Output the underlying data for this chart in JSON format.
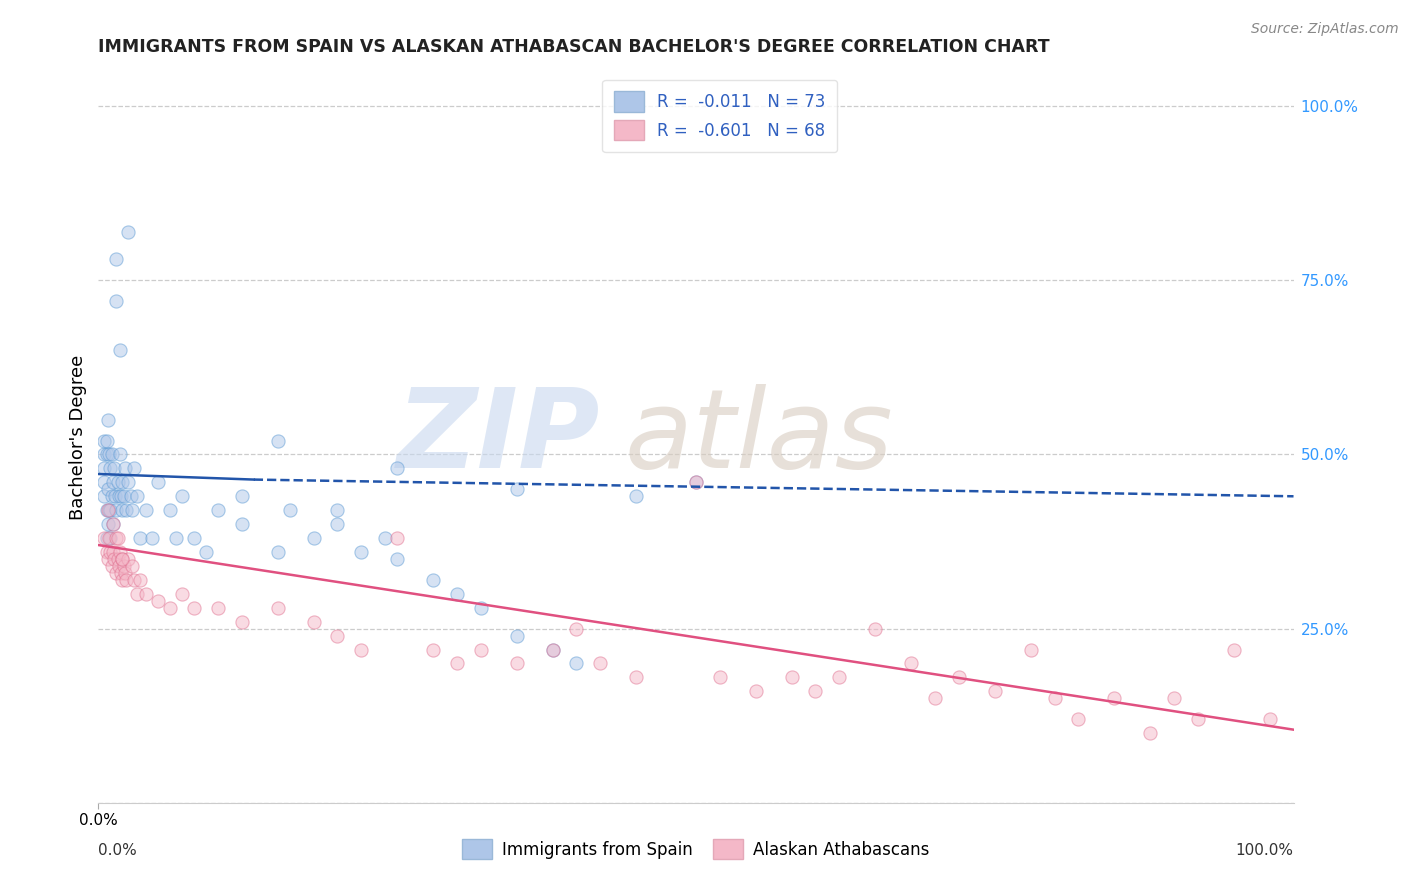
{
  "title": "IMMIGRANTS FROM SPAIN VS ALASKAN ATHABASCAN BACHELOR'S DEGREE CORRELATION CHART",
  "source": "Source: ZipAtlas.com",
  "ylabel": "Bachelor's Degree",
  "right_ytick_labels": [
    "100.0%",
    "75.0%",
    "50.0%",
    "25.0%"
  ],
  "right_ytick_vals": [
    1.0,
    0.75,
    0.5,
    0.25
  ],
  "grid_ytick_vals": [
    1.0,
    0.75,
    0.5,
    0.25,
    0.0
  ],
  "xlim": [
    0.0,
    1.0
  ],
  "ylim": [
    0.0,
    1.05
  ],
  "legend_top": [
    {
      "label": "R =  -0.011   N = 73",
      "facecolor": "#aec6e8",
      "edgecolor": "#9ab8d8"
    },
    {
      "label": "R =  -0.601   N = 68",
      "facecolor": "#f4b8c8",
      "edgecolor": "#e4a8b8"
    }
  ],
  "legend_bottom_labels": [
    "Immigrants from Spain",
    "Alaskan Athabascans"
  ],
  "legend_bottom_facecolors": [
    "#aec6e8",
    "#f4b8c8"
  ],
  "legend_bottom_edgecolors": [
    "#9ab8d8",
    "#e4a8b8"
  ],
  "legend_text_color": "#3060c0",
  "blue_scatter_x": [
    0.005,
    0.005,
    0.005,
    0.005,
    0.005,
    0.007,
    0.007,
    0.007,
    0.007,
    0.008,
    0.008,
    0.008,
    0.009,
    0.009,
    0.01,
    0.01,
    0.01,
    0.011,
    0.011,
    0.012,
    0.012,
    0.013,
    0.014,
    0.015,
    0.015,
    0.015,
    0.016,
    0.017,
    0.018,
    0.018,
    0.019,
    0.02,
    0.02,
    0.021,
    0.022,
    0.023,
    0.025,
    0.025,
    0.027,
    0.028,
    0.03,
    0.032,
    0.035,
    0.04,
    0.045,
    0.05,
    0.06,
    0.065,
    0.07,
    0.08,
    0.09,
    0.1,
    0.12,
    0.15,
    0.18,
    0.2,
    0.22,
    0.25,
    0.28,
    0.3,
    0.32,
    0.35,
    0.38,
    0.4,
    0.15,
    0.25,
    0.35,
    0.45,
    0.5,
    0.12,
    0.16,
    0.2,
    0.24
  ],
  "blue_scatter_y": [
    0.48,
    0.5,
    0.52,
    0.46,
    0.44,
    0.5,
    0.52,
    0.42,
    0.38,
    0.55,
    0.45,
    0.4,
    0.5,
    0.42,
    0.48,
    0.42,
    0.38,
    0.5,
    0.44,
    0.46,
    0.4,
    0.48,
    0.44,
    0.78,
    0.72,
    0.42,
    0.46,
    0.44,
    0.65,
    0.5,
    0.44,
    0.46,
    0.42,
    0.44,
    0.48,
    0.42,
    0.82,
    0.46,
    0.44,
    0.42,
    0.48,
    0.44,
    0.38,
    0.42,
    0.38,
    0.46,
    0.42,
    0.38,
    0.44,
    0.38,
    0.36,
    0.42,
    0.4,
    0.36,
    0.38,
    0.42,
    0.36,
    0.35,
    0.32,
    0.3,
    0.28,
    0.24,
    0.22,
    0.2,
    0.52,
    0.48,
    0.45,
    0.44,
    0.46,
    0.44,
    0.42,
    0.4,
    0.38
  ],
  "pink_scatter_x": [
    0.005,
    0.007,
    0.008,
    0.009,
    0.01,
    0.011,
    0.012,
    0.013,
    0.015,
    0.015,
    0.016,
    0.017,
    0.018,
    0.019,
    0.02,
    0.02,
    0.021,
    0.022,
    0.023,
    0.025,
    0.028,
    0.03,
    0.032,
    0.035,
    0.04,
    0.05,
    0.06,
    0.07,
    0.08,
    0.1,
    0.12,
    0.15,
    0.18,
    0.2,
    0.22,
    0.25,
    0.28,
    0.3,
    0.32,
    0.35,
    0.38,
    0.4,
    0.42,
    0.45,
    0.5,
    0.52,
    0.55,
    0.58,
    0.6,
    0.62,
    0.65,
    0.68,
    0.7,
    0.72,
    0.75,
    0.78,
    0.8,
    0.82,
    0.85,
    0.88,
    0.9,
    0.92,
    0.95,
    0.98,
    0.008,
    0.012,
    0.016,
    0.02
  ],
  "pink_scatter_y": [
    0.38,
    0.36,
    0.35,
    0.38,
    0.36,
    0.34,
    0.36,
    0.35,
    0.38,
    0.33,
    0.35,
    0.34,
    0.36,
    0.33,
    0.35,
    0.32,
    0.34,
    0.33,
    0.32,
    0.35,
    0.34,
    0.32,
    0.3,
    0.32,
    0.3,
    0.29,
    0.28,
    0.3,
    0.28,
    0.28,
    0.26,
    0.28,
    0.26,
    0.24,
    0.22,
    0.38,
    0.22,
    0.2,
    0.22,
    0.2,
    0.22,
    0.25,
    0.2,
    0.18,
    0.46,
    0.18,
    0.16,
    0.18,
    0.16,
    0.18,
    0.25,
    0.2,
    0.15,
    0.18,
    0.16,
    0.22,
    0.15,
    0.12,
    0.15,
    0.1,
    0.15,
    0.12,
    0.22,
    0.12,
    0.42,
    0.4,
    0.38,
    0.35
  ],
  "blue_line_solid": [
    0.0,
    0.13,
    0.472,
    0.464
  ],
  "blue_line_dashed": [
    0.13,
    1.0,
    0.464,
    0.44
  ],
  "pink_line": [
    0.0,
    1.0,
    0.37,
    0.105
  ],
  "scatter_size": 90,
  "scatter_alpha": 0.5,
  "bg_color": "#ffffff",
  "grid_color": "#cccccc",
  "right_label_color": "#3399ff",
  "blue_line_color": "#2255aa",
  "pink_line_color": "#e05080",
  "watermark_zip": "ZIP",
  "watermark_atlas": "atlas"
}
